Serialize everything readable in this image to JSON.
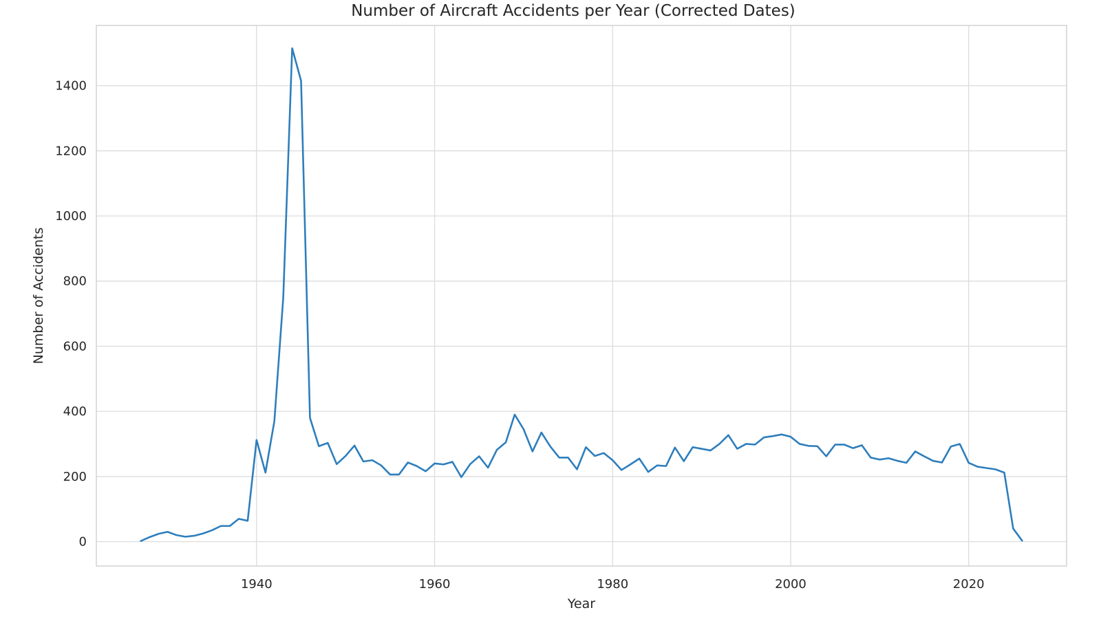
{
  "chart_data": {
    "type": "line",
    "title": "Number of Aircraft Accidents per Year (Corrected Dates)",
    "xlabel": "Year",
    "ylabel": "Number of Accidents",
    "xlim": [
      1922,
      2031
    ],
    "ylim": [
      -75,
      1585
    ],
    "xticks": [
      1940,
      1960,
      1980,
      2000,
      2020
    ],
    "yticks": [
      0,
      200,
      400,
      600,
      800,
      1000,
      1200,
      1400
    ],
    "grid": true,
    "line_color": "#2e7ebc",
    "series": [
      {
        "x": [
          1927,
          1928,
          1929,
          1930,
          1931,
          1932,
          1933,
          1934,
          1935,
          1936,
          1937,
          1938,
          1939,
          1940,
          1941,
          1942,
          1943,
          1944,
          1945,
          1946,
          1947,
          1948,
          1949,
          1950,
          1951,
          1952,
          1953,
          1954,
          1955,
          1956,
          1957,
          1958,
          1959,
          1960,
          1961,
          1962,
          1963,
          1964,
          1965,
          1966,
          1967,
          1968,
          1969,
          1970,
          1971,
          1972,
          1973,
          1974,
          1975,
          1976,
          1977,
          1978,
          1979,
          1980,
          1981,
          1982,
          1983,
          1984,
          1985,
          1986,
          1987,
          1988,
          1989,
          1990,
          1991,
          1992,
          1993,
          1994,
          1995,
          1996,
          1997,
          1998,
          1999,
          2000,
          2001,
          2002,
          2003,
          2004,
          2005,
          2006,
          2007,
          2008,
          2009,
          2010,
          2011,
          2012,
          2013,
          2014,
          2015,
          2016,
          2017,
          2018,
          2019,
          2020,
          2021,
          2022,
          2023,
          2024,
          2025,
          2026
        ],
        "values": [
          2,
          14,
          24,
          30,
          20,
          15,
          18,
          25,
          35,
          48,
          48,
          70,
          64,
          312,
          212,
          370,
          750,
          1515,
          1415,
          380,
          293,
          303,
          238,
          263,
          295,
          246,
          250,
          234,
          206,
          206,
          243,
          232,
          216,
          240,
          237,
          245,
          198,
          238,
          262,
          227,
          282,
          305,
          390,
          345,
          277,
          335,
          292,
          258,
          258,
          222,
          290,
          263,
          272,
          250,
          220,
          237,
          255,
          214,
          234,
          232,
          289,
          247,
          290,
          285,
          280,
          300,
          327,
          285,
          300,
          298,
          320,
          324,
          329,
          322,
          300,
          294,
          293,
          262,
          298,
          298,
          287,
          296,
          258,
          252,
          256,
          248,
          242,
          277,
          262,
          248,
          243,
          292,
          300,
          242,
          230,
          226,
          222,
          212,
          40,
          3
        ]
      }
    ]
  }
}
